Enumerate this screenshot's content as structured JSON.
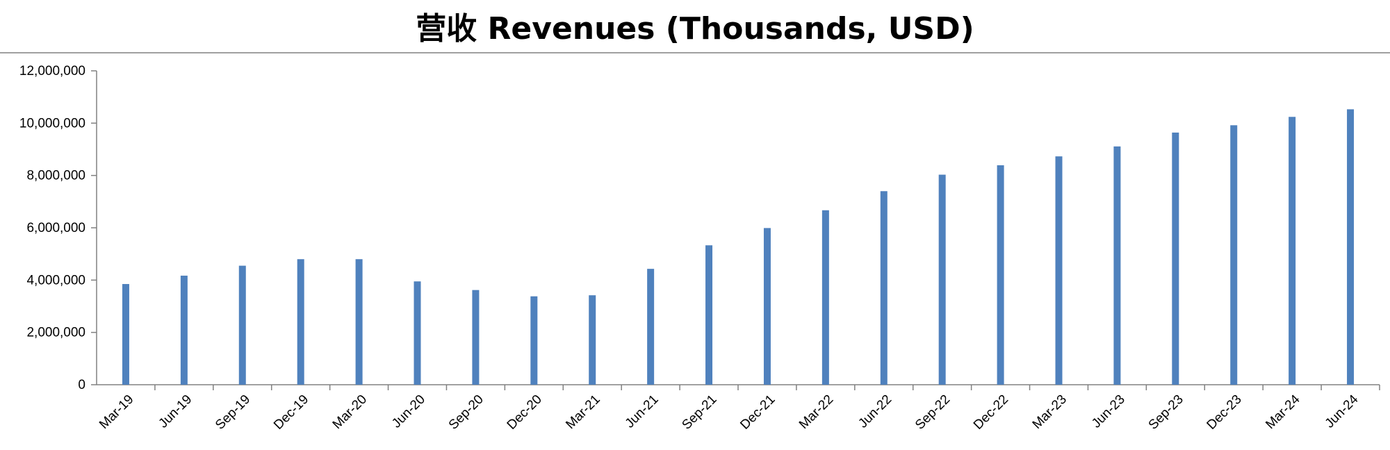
{
  "chart_data": {
    "type": "bar",
    "title": "营收 Revenues (Thousands, USD)",
    "xlabel": "",
    "ylabel": "",
    "ylim": [
      0,
      12000000
    ],
    "yticks": [
      "0",
      "2,000,000",
      "4,000,000",
      "6,000,000",
      "8,000,000",
      "10,000,000",
      "12,000,000"
    ],
    "categories": [
      "Mar-19",
      "Jun-19",
      "Sep-19",
      "Dec-19",
      "Mar-20",
      "Jun-20",
      "Sep-20",
      "Dec-20",
      "Mar-21",
      "Jun-21",
      "Sep-21",
      "Dec-21",
      "Mar-22",
      "Jun-22",
      "Sep-22",
      "Dec-22",
      "Mar-23",
      "Jun-23",
      "Sep-23",
      "Dec-23",
      "Mar-24",
      "Jun-24"
    ],
    "values": [
      3850000,
      4170000,
      4550000,
      4800000,
      4800000,
      3950000,
      3620000,
      3380000,
      3420000,
      4430000,
      5330000,
      5990000,
      6670000,
      7400000,
      8030000,
      8390000,
      8730000,
      9110000,
      9640000,
      9920000,
      10240000,
      10530000
    ],
    "grid": false,
    "legend": "none",
    "bar_color": "#4F81BD"
  }
}
